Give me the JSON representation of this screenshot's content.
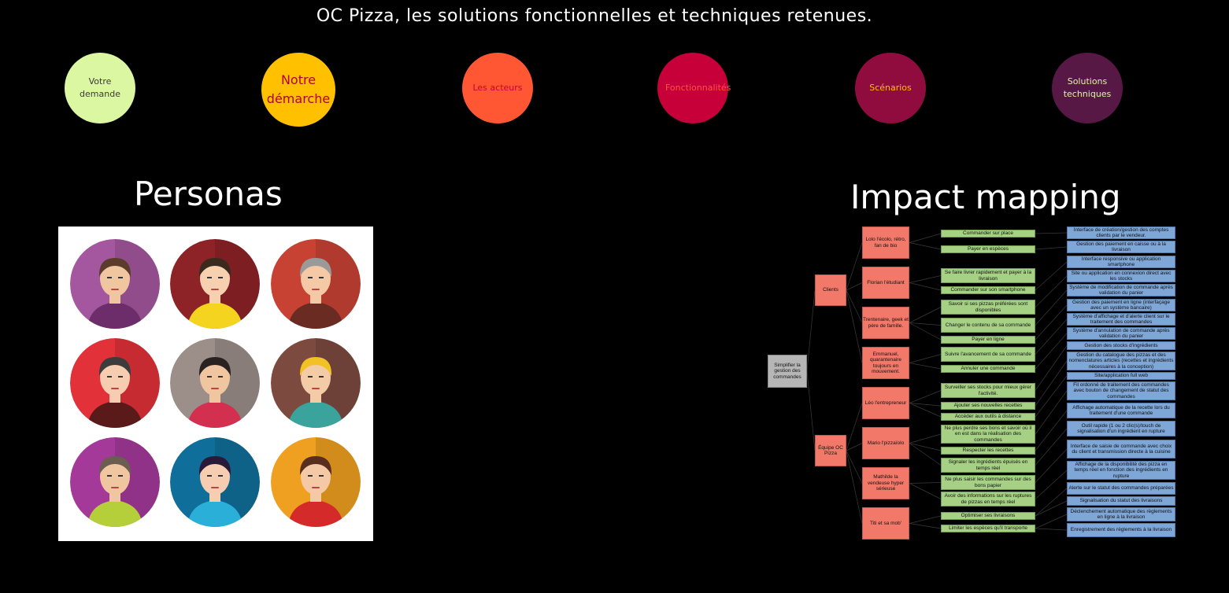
{
  "header": {
    "title": "OC Pizza, les solutions fonctionnelles et techniques retenues."
  },
  "nav": [
    {
      "label": "Votre demande",
      "bg": "#dcf7a2",
      "fg": "#3a3a3a"
    },
    {
      "label": "Notre démarche",
      "bg": "#ffc000",
      "fg": "#b3003b"
    },
    {
      "label": "Les acteurs",
      "bg": "#ff5733",
      "fg": "#c7003c"
    },
    {
      "label": "Fonctionnalités",
      "bg": "#c70039",
      "fg": "#ff5733"
    },
    {
      "label": "Scénarios",
      "bg": "#900c3f",
      "fg": "#ffc000"
    },
    {
      "label": "Solutions techniques",
      "bg": "#581845",
      "fg": "#dcf7a2"
    }
  ],
  "personas": {
    "heading": "Personas",
    "avatars": [
      {
        "bg": "#a4579f",
        "skin": "#f0c6a1",
        "hair": "#5b3b2a",
        "shirt": "#6d2d6b"
      },
      {
        "bg": "#8e2327",
        "skin": "#f7d0b0",
        "hair": "#3a2a1e",
        "shirt": "#f5d41f"
      },
      {
        "bg": "#c84234",
        "skin": "#f5c9a5",
        "hair": "#9a9a9a",
        "shirt": "#6a2b22"
      },
      {
        "bg": "#e23139",
        "skin": "#f6cdb0",
        "hair": "#3c3c3c",
        "shirt": "#5a1a1a"
      },
      {
        "bg": "#9c8f8a",
        "skin": "#f0c6a1",
        "hair": "#2a2220",
        "shirt": "#d32f4f"
      },
      {
        "bg": "#7d4a40",
        "skin": "#f4cba7",
        "hair": "#f2c123",
        "shirt": "#3aa39b"
      },
      {
        "bg": "#a4399a",
        "skin": "#f0c6a1",
        "hair": "#6b5d52",
        "shirt": "#b5cf3a"
      },
      {
        "bg": "#106f9a",
        "skin": "#f6cdb0",
        "hair": "#2a1a3a",
        "shirt": "#2ab0d8"
      },
      {
        "bg": "#f0a020",
        "skin": "#f5c9a5",
        "hair": "#5a2e1e",
        "shirt": "#d42a2a"
      }
    ]
  },
  "impact": {
    "heading": "Impact mapping",
    "goal": "Simplifier la gestion des commandes",
    "groups": [
      "Clients",
      "Équipe OC Pizza"
    ],
    "actors": [
      "Lolo l'écolo, rétro, fan de bio",
      "Florian l'étudiant",
      "Trentenaire, geek et père de famille.",
      "Emmanuel, quarantenaire toujours en mouvement.",
      "Léo l'entrepreneur",
      "Mario l'pizzaïolo",
      "Mathilde la vendeuse hyper sérieuse",
      "Titi et sa mob'"
    ],
    "impacts": [
      "Commander sur place",
      "Payer en espèces",
      "Se faire livrer rapidement et payer à la livraison",
      "Commander sur son smartphone",
      "Savoir si ses pizzas préférées sont disponibles",
      "Changer le contenu de sa commande",
      "Payer en ligne",
      "Suivre l'avancement de sa commande",
      "Annuler une commande",
      "Surveiller ses stocks pour mieux gérer l'activité.",
      "Ajouter ses nouvelles recettes",
      "Accéder aux outils à distance",
      "Ne plus perdre ses bons et savoir où il en est dans la réalisation des commandes",
      "Respecter les recettes",
      "Signaler les ingrédients épuisés en temps réel",
      "Ne plus saisir les commandes sur des bons papier",
      "Avoir des informations sur les ruptures de pizzas en temps réel",
      "Optimiser ses livraisons",
      "Limiter les espèces qu'il transporte"
    ],
    "deliverables": [
      "Interface de création/gestion des comptes clients par le vendeur.",
      "Gestion des paiement en caisse ou à la livraison",
      "Interface responsive ou application smartphone",
      "Site ou application en connexion direct avec les stocks",
      "Système de modification de commande après validation du panier",
      "Gestion des paiement en ligne (interfaçage avec un système bancaire)",
      "Système d'affichage et d'alerte client sur le traitement des commandes",
      "Système d'annulation de commande après validation du panier",
      "Gestion des stocks d'ingrédients",
      "Gestion du catalogue des pizzas et des nomenclatures articles (recettes et ingrédients nécessaires à la conception)",
      "Site/application full web",
      "Fil ordonné de traitement des commandes avec bouton de changement de statut des commandes",
      "Affichage automatique de la recette lors du traitement d'une commande",
      "Outil rapide (1 ou 2 clic(s)/touch de signalisation d'un ingrédient en rupture",
      "Interface de saisie de commande avec choix du client et transmission directe à la cuisine",
      "Affichage de la disponibilité des pizza en temps réel en fonction des ingrédients en rupture",
      "Alerte sur le statut des commandes préparées",
      "Signalisation du statut des livraisons",
      "Déclenchement automatique des règlements en ligne à la livraison",
      "Enregistrement des règlements à la livraison"
    ]
  }
}
